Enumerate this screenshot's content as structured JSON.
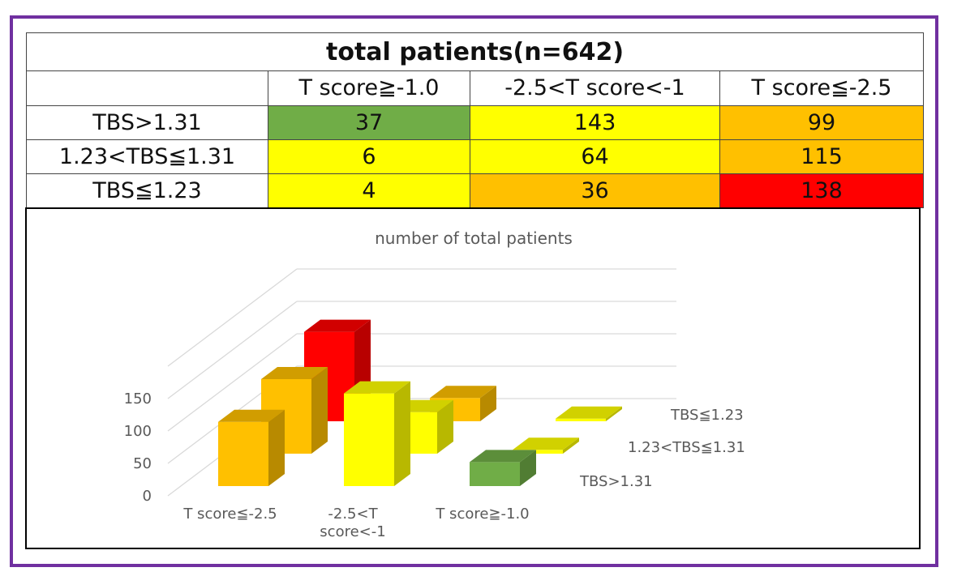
{
  "table": {
    "title": "total patients(n=642)",
    "columns": [
      "T score≧-1.0",
      "-2.5<T score<-1",
      "T score≦-2.5"
    ],
    "rows": [
      {
        "label": "TBS>1.31",
        "cells": [
          {
            "value": "37",
            "color": "#70ad47"
          },
          {
            "value": "143",
            "color": "#ffff00"
          },
          {
            "value": "99",
            "color": "#ffc000"
          }
        ]
      },
      {
        "label": "1.23<TBS≦1.31",
        "cells": [
          {
            "value": "6",
            "color": "#ffff00"
          },
          {
            "value": "64",
            "color": "#ffff00"
          },
          {
            "value": "115",
            "color": "#ffc000"
          }
        ]
      },
      {
        "label": "TBS≦1.23",
        "cells": [
          {
            "value": "4",
            "color": "#ffff00"
          },
          {
            "value": "36",
            "color": "#ffc000"
          },
          {
            "value": "138",
            "color": "#ff0000"
          }
        ]
      }
    ]
  },
  "chart_data": {
    "type": "bar",
    "subtype": "3d-column",
    "title": "number of total patients",
    "categories": [
      "T score≦-2.5",
      "-2.5<T score<-1",
      "T score≧-1.0"
    ],
    "category_lines": [
      [
        "T score≦-2.5"
      ],
      [
        "-2.5<T",
        "score<-1"
      ],
      [
        "T score≧-1.0"
      ]
    ],
    "series": [
      {
        "name": "TBS>1.31",
        "values": [
          99,
          143,
          37
        ],
        "colors": [
          "#ffc000",
          "#ffff00",
          "#70ad47"
        ]
      },
      {
        "name": "1.23<TBS≦1.31",
        "values": [
          115,
          64,
          6
        ],
        "colors": [
          "#ffc000",
          "#ffff00",
          "#ffff00"
        ]
      },
      {
        "name": "TBS≦1.23",
        "values": [
          138,
          36,
          4
        ],
        "colors": [
          "#ff0000",
          "#ffc000",
          "#ffff00"
        ]
      }
    ],
    "yticks": [
      0,
      50,
      100,
      150
    ],
    "ylim": [
      0,
      175
    ],
    "grid": true,
    "legend": "none"
  }
}
